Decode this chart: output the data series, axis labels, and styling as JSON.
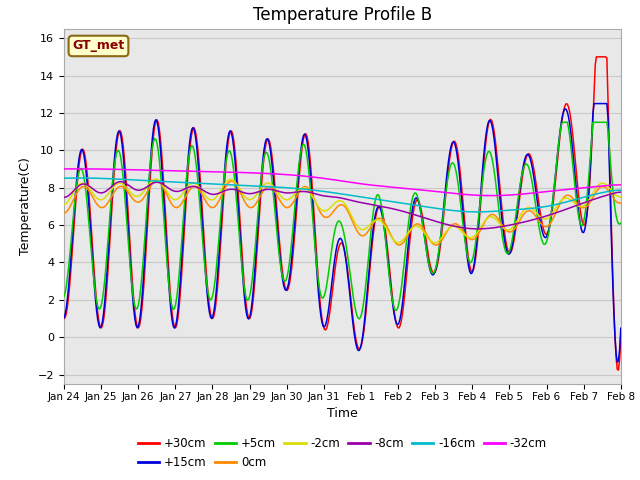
{
  "title": "Temperature Profile B",
  "xlabel": "Time",
  "ylabel": "Temperature(C)",
  "ylim": [
    -2.5,
    16.5
  ],
  "yticks": [
    -2,
    0,
    2,
    4,
    6,
    8,
    10,
    12,
    14,
    16
  ],
  "x_labels": [
    "Jan 24",
    "Jan 25",
    "Jan 26",
    "Jan 27",
    "Jan 28",
    "Jan 29",
    "Jan 30",
    "Jan 31",
    "Feb 1",
    "Feb 2",
    "Feb 3",
    "Feb 4",
    "Feb 5",
    "Feb 6",
    "Feb 7",
    "Feb 8"
  ],
  "legend": [
    {
      "label": "+30cm",
      "color": "#ff0000"
    },
    {
      "label": "+15cm",
      "color": "#0000dd"
    },
    {
      "label": "+5cm",
      "color": "#00cc00"
    },
    {
      "label": "0cm",
      "color": "#ff8800"
    },
    {
      "label": "-2cm",
      "color": "#dddd00"
    },
    {
      "label": "-8cm",
      "color": "#9900aa"
    },
    {
      "label": "-16cm",
      "color": "#00bbcc"
    },
    {
      "label": "-32cm",
      "color": "#ff00ff"
    }
  ],
  "annotation_text": "GT_met",
  "annotation_color": "#8b0000",
  "annotation_bg": "#ffffcc",
  "grid_color": "#c8c8c8",
  "bg_color": "#e8e8e8",
  "title_fontsize": 12,
  "legend_ncol_row1": 6,
  "legend_ncol_row2": 2
}
